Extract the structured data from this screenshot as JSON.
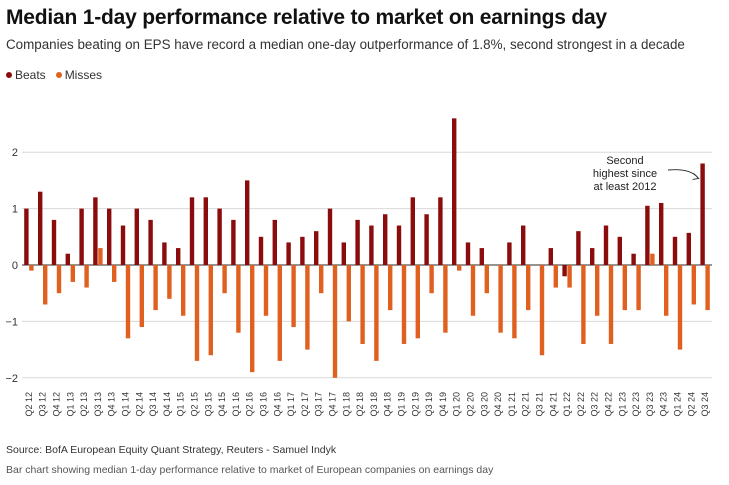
{
  "title": "Median 1-day performance relative to market on earnings day",
  "subtitle": "Companies beating on EPS have record a median one-day outperformance of 1.8%, second strongest in a decade",
  "source": "Source: BofA European Equity Quant Strategy, Reuters - Samuel Indyk",
  "caption": "Bar chart showing median 1-day performance relative to market of European companies on earnings day",
  "colors": {
    "beats": "#8b0c0c",
    "misses": "#e06020",
    "grid": "#d9d9d9",
    "axis": "#555555"
  },
  "chart_data": {
    "type": "bar",
    "title": "Median 1-day performance relative to market on earnings day",
    "ylim": [
      -2.2,
      2.7
    ],
    "yticks": [
      2,
      1,
      0,
      -1,
      -2
    ],
    "ytick_labels": [
      "2",
      "1",
      "0",
      "−1",
      "−2"
    ],
    "grid": true,
    "legend_position": "top-left",
    "categories": [
      "Q2 12",
      "Q3 12",
      "Q4 12",
      "Q1 13",
      "Q2 13",
      "Q3 13",
      "Q4 13",
      "Q1 14",
      "Q2 14",
      "Q3 14",
      "Q4 14",
      "Q1 15",
      "Q2 15",
      "Q3 15",
      "Q4 15",
      "Q1 16",
      "Q2 16",
      "Q3 16",
      "Q4 16",
      "Q1 17",
      "Q2 17",
      "Q3 17",
      "Q4 17",
      "Q1 18",
      "Q2 18",
      "Q3 18",
      "Q4 18",
      "Q1 19",
      "Q2 19",
      "Q3 19",
      "Q4 19",
      "Q1 20",
      "Q2 20",
      "Q3 20",
      "Q4 20",
      "Q1 21",
      "Q2 21",
      "Q3 21",
      "Q4 21",
      "Q1 22",
      "Q2 22",
      "Q3 22",
      "Q4 22",
      "Q1 23",
      "Q2 23",
      "Q3 23",
      "Q4 23",
      "Q1 24",
      "Q2 24",
      "Q3 24"
    ],
    "series": [
      {
        "name": "Beats",
        "values": [
          1.0,
          1.3,
          0.8,
          0.2,
          1.0,
          1.2,
          1.0,
          0.7,
          1.0,
          0.8,
          0.4,
          0.3,
          1.2,
          1.2,
          1.0,
          0.8,
          1.5,
          0.5,
          0.8,
          0.4,
          0.5,
          0.6,
          1.0,
          0.4,
          0.8,
          0.7,
          0.9,
          0.7,
          1.2,
          0.9,
          1.2,
          2.6,
          0.4,
          0.3,
          0.0,
          0.4,
          0.7,
          0.0,
          0.3,
          -0.2,
          0.6,
          0.3,
          0.7,
          0.5,
          0.2,
          1.05,
          1.1,
          0.5,
          0.57,
          1.8
        ]
      },
      {
        "name": "Misses",
        "values": [
          -0.1,
          -0.7,
          -0.5,
          -0.3,
          -0.4,
          0.3,
          -0.3,
          -1.3,
          -1.1,
          -0.8,
          -0.6,
          -0.9,
          -1.7,
          -1.6,
          -0.5,
          -1.2,
          -1.9,
          -0.9,
          -1.7,
          -1.1,
          -1.5,
          -0.5,
          -2.0,
          -1.0,
          -1.4,
          -1.7,
          -0.8,
          -1.4,
          -1.3,
          -0.5,
          -1.2,
          -0.1,
          -0.9,
          -0.5,
          -1.2,
          -1.3,
          -0.8,
          -1.6,
          -0.4,
          -0.4,
          -1.4,
          -0.9,
          -1.4,
          -0.8,
          -0.8,
          0.2,
          -0.9,
          -1.5,
          -0.7,
          -0.8
        ]
      }
    ],
    "annotation": {
      "text_lines": [
        "Second",
        "highest since",
        "at least 2012"
      ],
      "target_category": "Q3 24"
    }
  }
}
